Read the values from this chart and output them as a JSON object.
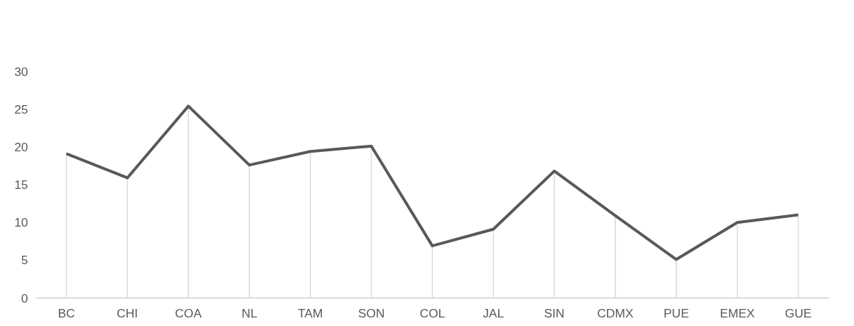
{
  "chart_data": {
    "type": "line",
    "categories": [
      "BC",
      "CHI",
      "COA",
      "NL",
      "TAM",
      "SON",
      "COL",
      "JAL",
      "SIN",
      "CDMX",
      "PUE",
      "EMEX",
      "GUE"
    ],
    "series": [
      {
        "type": "bar",
        "color": "#d9d9d9",
        "values": [
          19.1,
          15.9,
          25.4,
          17.6,
          19.4,
          20.1,
          6.9,
          9.1,
          16.8,
          10.9,
          5.1,
          10.0,
          11.0
        ]
      },
      {
        "color": "#595959",
        "values": [
          19.1,
          15.9,
          25.4,
          17.6,
          19.4,
          20.1,
          6.9,
          9.1,
          16.8,
          10.9,
          5.1,
          10.0,
          11.0
        ]
      }
    ],
    "ylim": [
      0,
      30
    ],
    "yticks": [
      0,
      5,
      10,
      15,
      20,
      25,
      30
    ],
    "line_style": "solid"
  }
}
